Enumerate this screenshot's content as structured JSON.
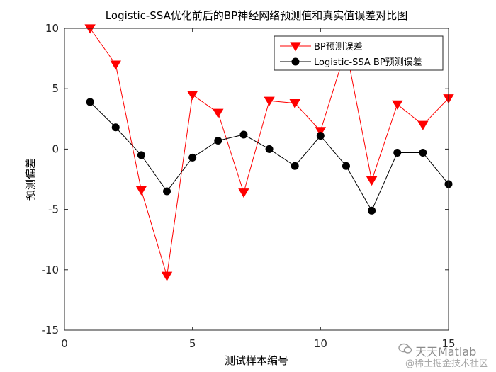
{
  "chart_data": {
    "type": "line",
    "title": "Logistic-SSA优化前后的BP神经网络预测值和真实值误差对比图",
    "xlabel": "测试样本编号",
    "ylabel": "预测偏差",
    "xlim": [
      0,
      15
    ],
    "ylim": [
      -15,
      10
    ],
    "xticks": [
      0,
      5,
      10,
      15
    ],
    "yticks": [
      -15,
      -10,
      -5,
      0,
      5,
      10
    ],
    "legend_position": "top-right",
    "x": [
      1,
      2,
      3,
      4,
      5,
      6,
      7,
      8,
      9,
      10,
      11,
      12,
      13,
      14,
      15
    ],
    "series": [
      {
        "name": "BP预测误差",
        "color": "#ff0000",
        "marker": "triangle-down",
        "values": [
          10.0,
          7.0,
          -3.4,
          -10.5,
          4.5,
          3.0,
          -3.6,
          4.0,
          3.8,
          1.5,
          8.3,
          -2.6,
          3.7,
          2.0,
          4.2
        ]
      },
      {
        "name": "Logistic-SSA BP预测误差",
        "color": "#000000",
        "marker": "circle",
        "values": [
          3.9,
          1.8,
          -0.5,
          -3.5,
          -0.7,
          0.7,
          1.2,
          0.0,
          -1.4,
          1.1,
          -1.4,
          -5.1,
          -0.3,
          -0.3,
          -2.9
        ]
      }
    ]
  },
  "watermark": {
    "line1": "天天Matlab",
    "line2": "@稀土掘金技术社区"
  }
}
